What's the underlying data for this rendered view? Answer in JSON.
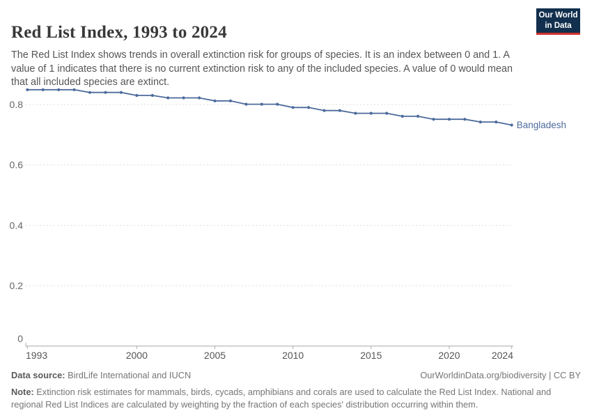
{
  "header": {
    "title": "Red List Index, 1993 to 2024",
    "subtitle": "The Red List Index shows trends in overall extinction risk for groups of species. It is an index between 0 and 1. A value of 1 indicates that there is no current extinction risk to any of the included species. A value of 0 would mean that all included species are extinct.",
    "logo": {
      "line1": "Our World",
      "line2": "in Data"
    }
  },
  "chart_data": {
    "type": "line",
    "title": "Red List Index, 1993 to 2024",
    "xlabel": "",
    "ylabel": "",
    "x": [
      1993,
      1994,
      1995,
      1996,
      1997,
      1998,
      1999,
      2000,
      2001,
      2002,
      2003,
      2004,
      2005,
      2006,
      2007,
      2008,
      2009,
      2010,
      2011,
      2012,
      2013,
      2014,
      2015,
      2016,
      2017,
      2018,
      2019,
      2020,
      2021,
      2022,
      2023,
      2024
    ],
    "series": [
      {
        "name": "Bangladesh",
        "color": "#4c6a9c",
        "values": [
          0.849,
          0.849,
          0.849,
          0.849,
          0.84,
          0.84,
          0.84,
          0.83,
          0.83,
          0.822,
          0.822,
          0.822,
          0.812,
          0.812,
          0.801,
          0.801,
          0.801,
          0.79,
          0.79,
          0.78,
          0.78,
          0.771,
          0.771,
          0.771,
          0.761,
          0.761,
          0.751,
          0.751,
          0.751,
          0.742,
          0.742,
          0.732
        ]
      }
    ],
    "ylim": [
      0,
      0.87
    ],
    "yticks": [
      0,
      0.2,
      0.4,
      0.6,
      0.8
    ],
    "xticks": [
      1993,
      2000,
      2005,
      2010,
      2015,
      2020,
      2024
    ],
    "grid": "horizontal-dashed",
    "legend_position": "end-of-line-label",
    "end_label": "Bangladesh"
  },
  "colors": {
    "line": "#4c6a9c",
    "title": "#383838",
    "subtitle": "#555555",
    "grid": "#dddddd",
    "axis_line": "#a8a8a8",
    "y_tick_label": "#666666",
    "x_tick_label": "#565656",
    "footer_text": "#757575",
    "logo_bg": "#12304e",
    "logo_red": "#d0342c"
  },
  "footer": {
    "datasource_label": "Data source:",
    "datasource_text": " BirdLife International and IUCN",
    "link": "OurWorldinData.org/biodiversity | CC BY",
    "note_label": "Note:",
    "note_text": " Extinction risk estimates for mammals, birds, cycads, amphibians and corals are used to calculate the Red List Index. National and regional Red List Indices are calculated by weighting by the fraction of each species' distribution occurring within them."
  }
}
